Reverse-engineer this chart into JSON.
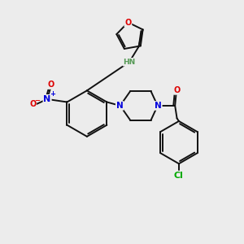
{
  "bg_color": "#ececec",
  "bond_color": "#111111",
  "atom_colors": {
    "N": "#0000dd",
    "O": "#dd0000",
    "Cl": "#00aa00",
    "H": "#559955",
    "C": "#111111"
  },
  "figsize": [
    3.0,
    3.0
  ],
  "dpi": 100,
  "lw": 1.4,
  "fs": 7.0
}
